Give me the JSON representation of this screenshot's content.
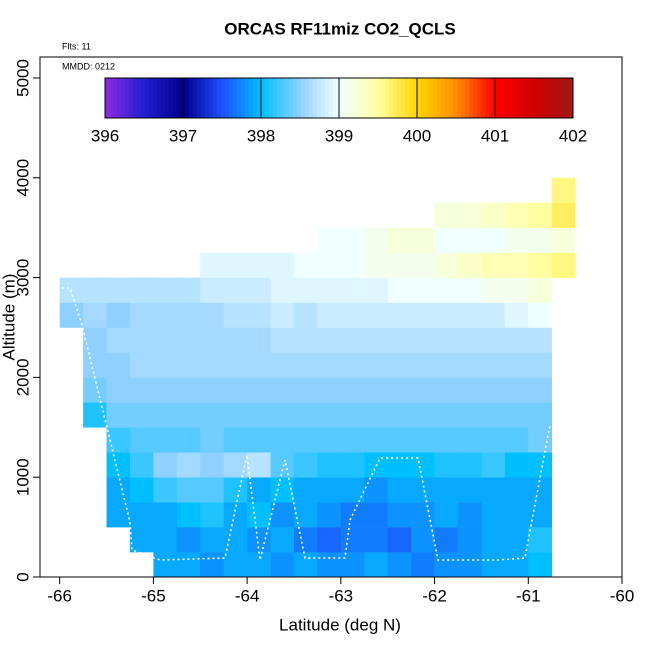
{
  "chart_data": {
    "type": "heatmap",
    "title": "ORCAS RF11miz CO2_QCLS",
    "annotations": [
      "Flts: 11",
      "MMDD: 0212"
    ],
    "xlabel": "Latitude (deg N)",
    "ylabel": "Altitude (m)",
    "xlim": [
      -66.21,
      -60
    ],
    "xticks": [
      -66,
      -65,
      -64,
      -63,
      -62,
      -61,
      -60
    ],
    "ylim": [
      0,
      5210
    ],
    "yticks": [
      0,
      1000,
      2000,
      3000,
      4000,
      5000
    ],
    "xbins": [
      -66,
      -65.75,
      -65.5,
      -65.25,
      -65,
      -64.75,
      -64.5,
      -64.25,
      -64,
      -63.75,
      -63.5,
      -63.25,
      -63,
      -62.75,
      -62.5,
      -62.25,
      -62,
      -61.75,
      -61.5,
      -61.25,
      -61,
      -60.75,
      -60.5
    ],
    "ybins": [
      0,
      250,
      500,
      750,
      1000,
      1250,
      1500,
      1750,
      2000,
      2250,
      2500,
      2750,
      3000,
      3250,
      3500,
      3750,
      4000
    ],
    "zlim": [
      396,
      402
    ],
    "zticks": [
      396,
      397,
      398,
      399,
      400,
      401,
      402
    ],
    "colormap": [
      "#8a2be2",
      "#2020d0",
      "#00008b",
      "#1e50ff",
      "#00bfff",
      "#90d0ff",
      "#f0ffff",
      "#ffffa0",
      "#ffd700",
      "#ff8c00",
      "#ff0000",
      "#d00000",
      "#a01818"
    ],
    "values": [
      [
        null,
        null,
        null,
        null,
        397.9,
        397.9,
        397.8,
        397.9,
        397.9,
        397.8,
        397.9,
        397.8,
        397.8,
        397.9,
        397.8,
        397.7,
        397.8,
        397.8,
        397.9,
        397.9,
        398.0,
        null
      ],
      [
        null,
        null,
        null,
        397.9,
        397.9,
        397.8,
        397.9,
        397.9,
        397.8,
        397.9,
        397.7,
        397.6,
        397.7,
        397.7,
        397.6,
        397.8,
        397.7,
        397.8,
        397.9,
        397.9,
        398.1,
        null
      ],
      [
        null,
        null,
        397.9,
        397.9,
        397.9,
        398.0,
        398.1,
        397.9,
        398.0,
        397.8,
        397.9,
        397.8,
        397.7,
        397.7,
        397.8,
        397.8,
        397.9,
        397.8,
        397.9,
        397.9,
        397.9,
        null
      ],
      [
        null,
        null,
        397.9,
        398.0,
        398.2,
        398.3,
        398.3,
        398.1,
        397.9,
        398.0,
        397.9,
        397.9,
        397.9,
        397.8,
        397.9,
        397.9,
        397.9,
        397.9,
        397.9,
        397.9,
        397.9,
        null
      ],
      [
        null,
        null,
        398.0,
        398.2,
        398.5,
        398.6,
        398.5,
        398.6,
        398.7,
        398.3,
        398.2,
        398.1,
        398.1,
        398.0,
        398.0,
        398.0,
        398.1,
        398.1,
        398.2,
        398.0,
        398.0,
        null
      ],
      [
        null,
        null,
        398.2,
        398.3,
        398.3,
        398.3,
        398.4,
        398.3,
        398.3,
        398.3,
        398.3,
        398.3,
        398.3,
        398.3,
        398.3,
        398.3,
        398.3,
        398.3,
        398.3,
        398.3,
        398.4,
        null
      ],
      [
        null,
        398.1,
        398.4,
        398.4,
        398.4,
        398.4,
        398.4,
        398.4,
        398.4,
        398.4,
        398.4,
        398.4,
        398.4,
        398.4,
        398.4,
        398.4,
        398.4,
        398.4,
        398.4,
        398.4,
        398.4,
        null
      ],
      [
        null,
        398.4,
        398.5,
        398.5,
        398.5,
        398.5,
        398.5,
        398.5,
        398.5,
        398.5,
        398.5,
        398.5,
        398.5,
        398.5,
        398.5,
        398.5,
        398.5,
        398.5,
        398.5,
        398.5,
        398.5,
        null
      ],
      [
        null,
        398.5,
        398.5,
        398.6,
        398.6,
        398.6,
        398.6,
        398.6,
        398.6,
        398.6,
        398.6,
        398.6,
        398.6,
        398.6,
        398.6,
        398.6,
        398.6,
        398.6,
        398.6,
        398.6,
        398.6,
        null
      ],
      [
        null,
        398.5,
        398.6,
        398.6,
        398.6,
        398.6,
        398.6,
        398.6,
        398.6,
        398.7,
        398.7,
        398.7,
        398.7,
        398.7,
        398.7,
        398.7,
        398.7,
        398.7,
        398.7,
        398.7,
        398.7,
        null
      ],
      [
        398.5,
        398.6,
        398.5,
        398.6,
        398.6,
        398.6,
        398.6,
        398.7,
        398.7,
        398.8,
        398.7,
        398.8,
        398.8,
        398.8,
        398.8,
        398.8,
        398.8,
        398.8,
        398.8,
        398.9,
        399.0,
        null
      ],
      [
        398.7,
        398.7,
        398.7,
        398.7,
        398.7,
        398.7,
        398.8,
        398.8,
        398.8,
        398.9,
        398.9,
        398.9,
        398.9,
        398.9,
        399.0,
        399.0,
        399.0,
        399.0,
        399.1,
        399.1,
        399.2,
        null
      ],
      [
        null,
        null,
        null,
        null,
        null,
        null,
        398.9,
        398.9,
        398.9,
        398.9,
        399.0,
        399.0,
        399.0,
        399.1,
        399.1,
        399.1,
        399.2,
        399.3,
        399.4,
        399.4,
        399.5,
        399.6
      ],
      [
        null,
        null,
        null,
        null,
        null,
        null,
        null,
        null,
        null,
        null,
        null,
        399.0,
        399.0,
        399.1,
        399.2,
        399.2,
        399.0,
        399.0,
        399.0,
        399.1,
        399.1,
        399.2
      ],
      [
        null,
        null,
        null,
        null,
        null,
        null,
        null,
        null,
        null,
        null,
        null,
        null,
        null,
        null,
        null,
        null,
        399.2,
        399.2,
        399.3,
        399.4,
        399.5,
        399.7
      ],
      [
        null,
        null,
        null,
        null,
        null,
        null,
        null,
        null,
        null,
        null,
        null,
        null,
        null,
        null,
        null,
        null,
        null,
        null,
        null,
        null,
        null,
        399.6
      ]
    ]
  }
}
